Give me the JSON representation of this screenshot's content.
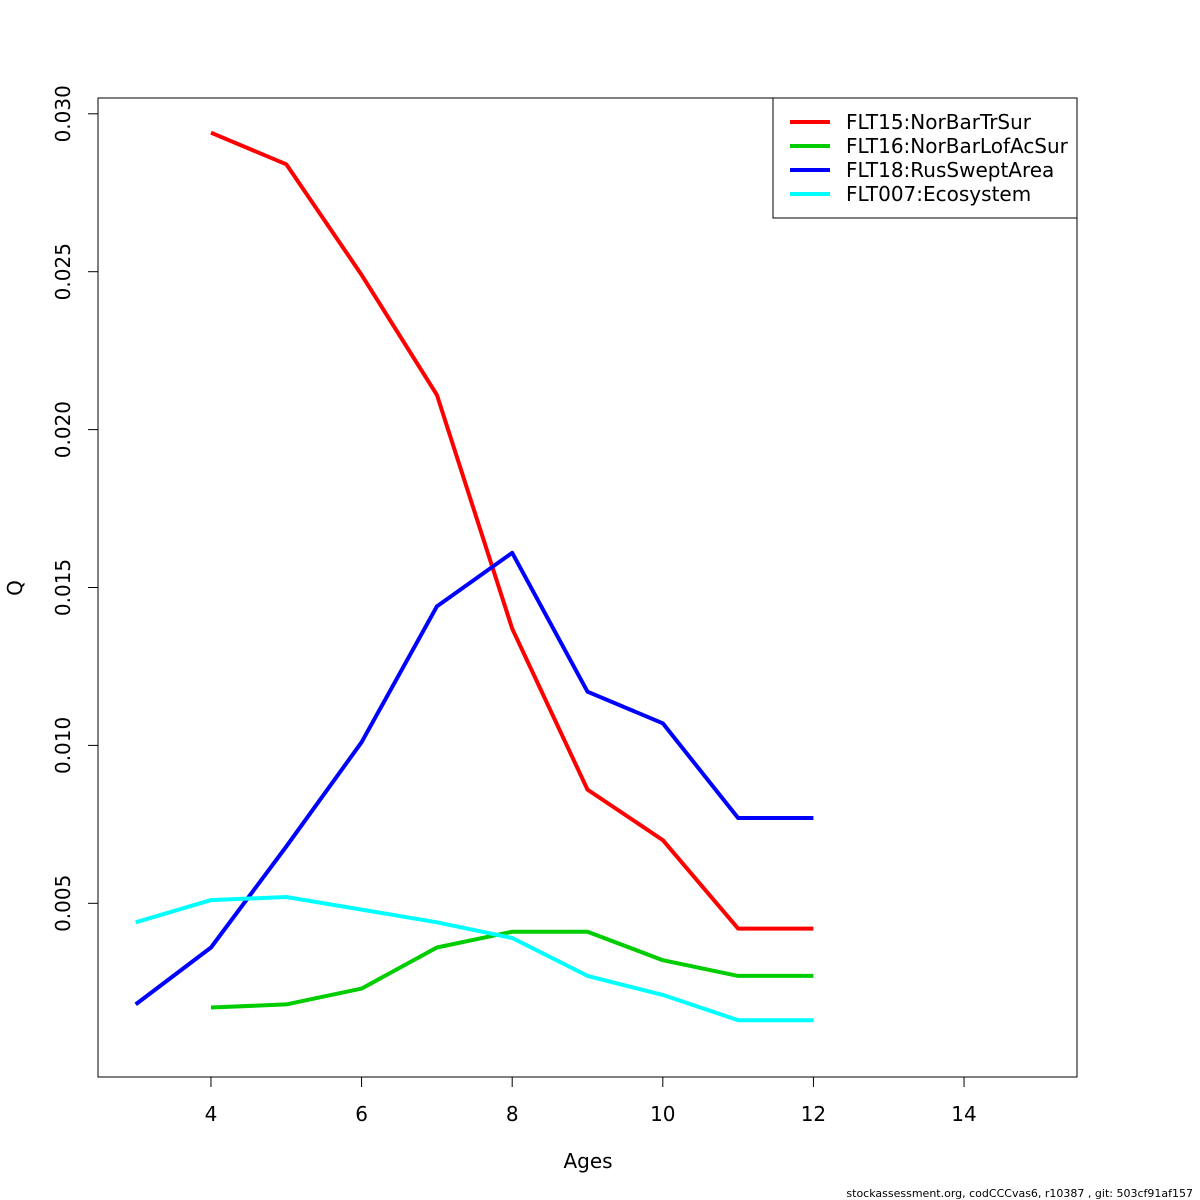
{
  "chart_data": {
    "type": "line",
    "title": "",
    "xlabel": "Ages",
    "ylabel": "Q",
    "xlim": [
      2.5,
      15.5
    ],
    "ylim": [
      -0.0005,
      0.0305
    ],
    "xticks": [
      "4",
      "6",
      "8",
      "10",
      "12",
      "14"
    ],
    "xtick_values": [
      4,
      6,
      8,
      10,
      12,
      14
    ],
    "yticks": [
      "0.005",
      "0.010",
      "0.015",
      "0.020",
      "0.025",
      "0.030"
    ],
    "ytick_values": [
      0.005,
      0.01,
      0.015,
      0.02,
      0.025,
      0.03
    ],
    "legend_position": "top-right",
    "series": [
      {
        "name": "FLT15:NorBarTrSur",
        "color": "#ff0000",
        "x": [
          4,
          5,
          6,
          7,
          8,
          9,
          10,
          11,
          12
        ],
        "values": [
          0.0294,
          0.0284,
          0.0249,
          0.0211,
          0.0137,
          0.0086,
          0.007,
          0.0042,
          0.0042
        ]
      },
      {
        "name": "FLT16:NorBarLofAcSur",
        "color": "#00cd00",
        "x": [
          4,
          5,
          6,
          7,
          8,
          9,
          10,
          11,
          12
        ],
        "values": [
          0.0017,
          0.0018,
          0.0023,
          0.0036,
          0.0041,
          0.0041,
          0.0032,
          0.0027,
          0.0027
        ]
      },
      {
        "name": "FLT18:RusSweptArea",
        "color": "#0000ff",
        "x": [
          3,
          4,
          5,
          6,
          7,
          8,
          9,
          10,
          11,
          12
        ],
        "values": [
          0.0018,
          0.0036,
          0.0068,
          0.0101,
          0.0144,
          0.0161,
          0.0117,
          0.0107,
          0.0077,
          0.0077
        ]
      },
      {
        "name": "FLT007:Ecosystem",
        "color": "#00ffff",
        "x": [
          3,
          4,
          5,
          6,
          7,
          8,
          9,
          10,
          11,
          12
        ],
        "values": [
          0.0044,
          0.0051,
          0.0052,
          0.0048,
          0.0044,
          0.0039,
          0.0027,
          0.0021,
          0.0013,
          0.0013
        ]
      }
    ]
  },
  "footer": "stockassessment.org, codCCCvas6, r10387 , git: 503cf91af157"
}
